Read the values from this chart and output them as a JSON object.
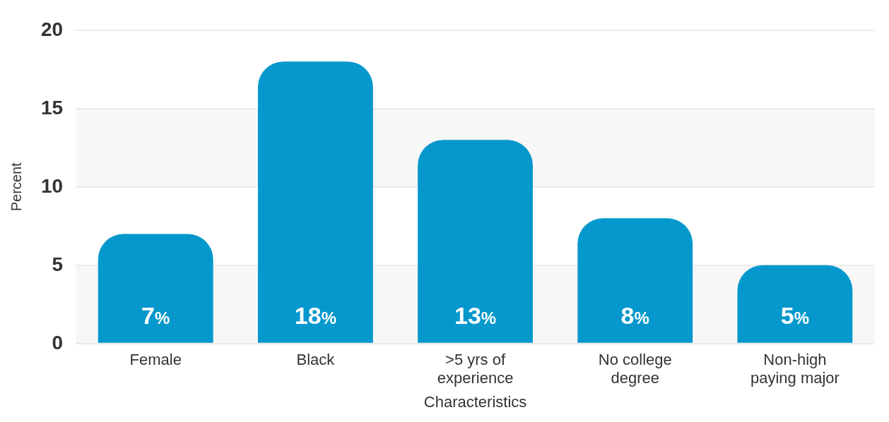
{
  "chart_data": {
    "type": "bar",
    "xlabel": "Characteristics",
    "ylabel": "Percent",
    "categories": [
      "Female",
      "Black",
      ">5 yrs of experience",
      "No college degree",
      "Non-high paying major"
    ],
    "values": [
      7,
      18,
      13,
      8,
      5
    ],
    "value_labels": [
      "7%",
      "18%",
      "13%",
      "8%",
      "5%"
    ],
    "color": "#0598cc",
    "ylim": [
      0,
      20
    ],
    "yticks": [
      0,
      5,
      10,
      15,
      20
    ],
    "grid": "y"
  }
}
